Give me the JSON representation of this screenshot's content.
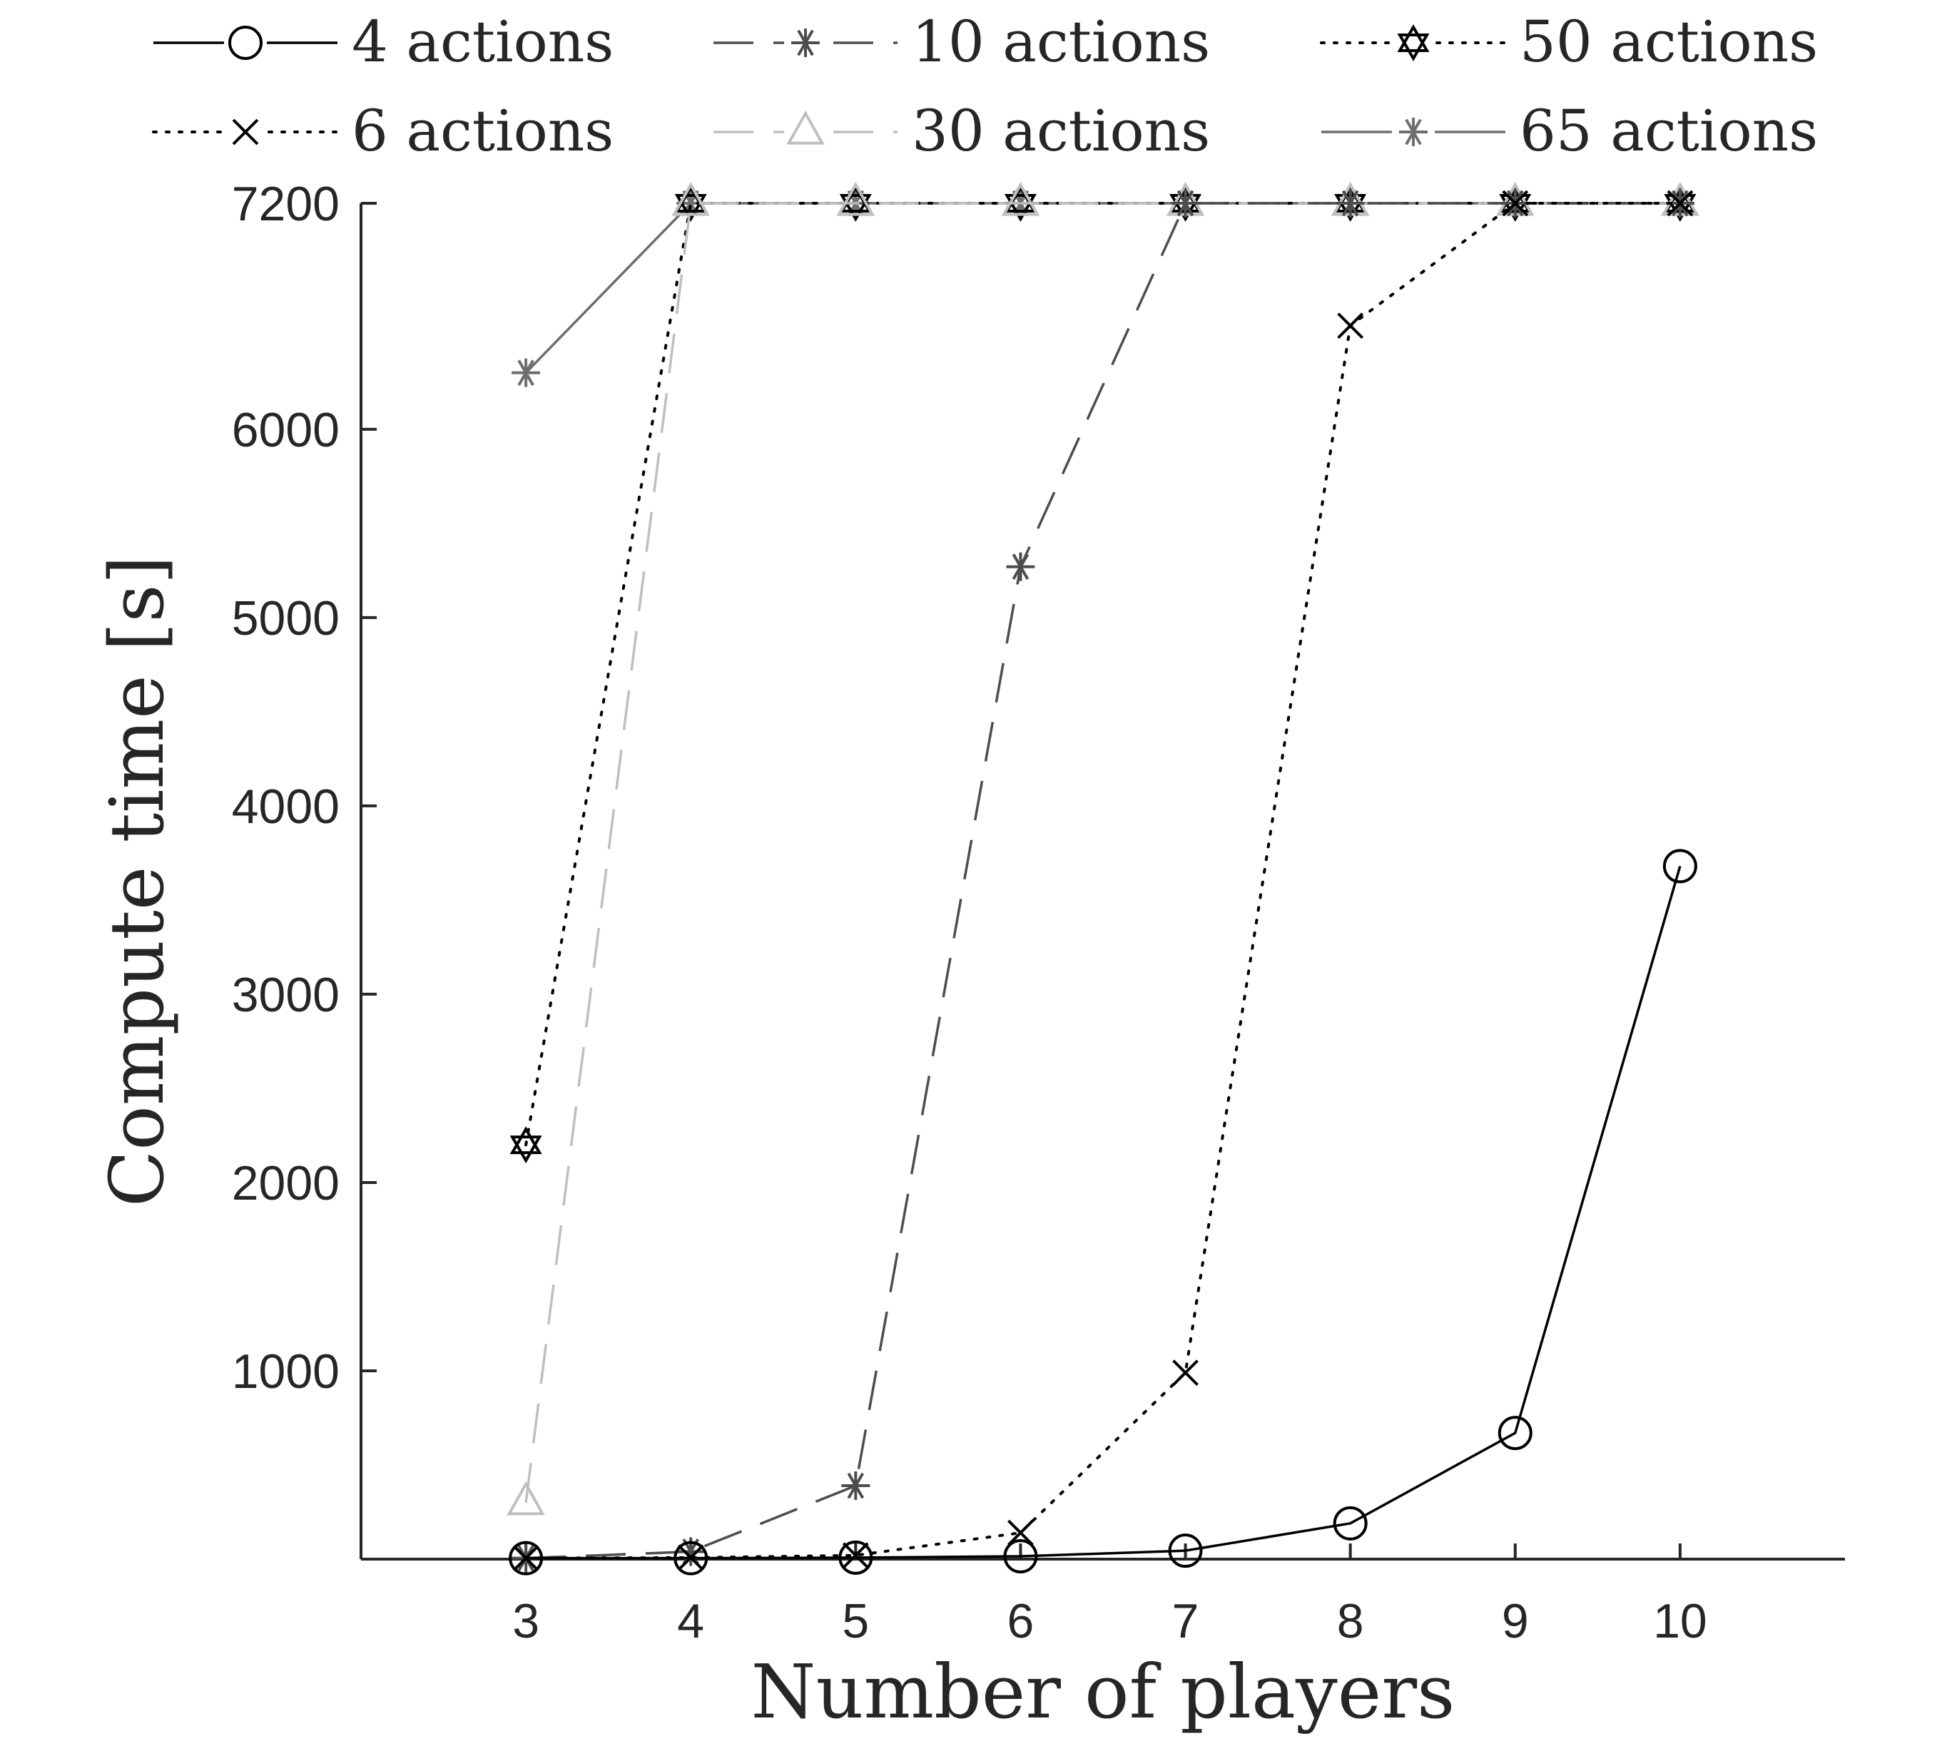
{
  "chart_data": {
    "type": "line",
    "xlabel": "Number of players",
    "ylabel": "Compute time [s]",
    "x": [
      3,
      4,
      5,
      6,
      7,
      8,
      9,
      10
    ],
    "xlim": [
      2,
      11
    ],
    "ylim": [
      0,
      7200
    ],
    "x_ticks": [
      "3",
      "4",
      "5",
      "6",
      "7",
      "8",
      "9",
      "10"
    ],
    "y_ticks": [
      "1000",
      "2000",
      "3000",
      "4000",
      "5000",
      "6000",
      "7200"
    ],
    "grid": false,
    "legend_placement": "top",
    "series": [
      {
        "name": "4 actions",
        "values": [
          5,
          5,
          8,
          15,
          45,
          190,
          670,
          3680
        ],
        "color": "#000000",
        "dash": "solid",
        "marker": "circle"
      },
      {
        "name": "6 actions",
        "values": [
          5,
          8,
          20,
          140,
          990,
          6550,
          7200,
          7200
        ],
        "color": "#000000",
        "dash": "dotted",
        "marker": "x"
      },
      {
        "name": "10 actions",
        "values": [
          5,
          40,
          390,
          5270,
          7200,
          7200,
          7200,
          7200
        ],
        "color": "#4d4d4d",
        "dash": "dashed",
        "marker": "asterisk"
      },
      {
        "name": "30 actions",
        "values": [
          300,
          7200,
          7200,
          7200,
          7200,
          7200,
          7200,
          7200
        ],
        "color": "#bfbfbf",
        "dash": "dashed",
        "marker": "triangle"
      },
      {
        "name": "50 actions",
        "values": [
          2200,
          7200,
          7200,
          7200,
          7200,
          7200,
          7200,
          7200
        ],
        "color": "#000000",
        "dash": "dotted",
        "marker": "hexagram"
      },
      {
        "name": "65 actions",
        "values": [
          6300,
          7200,
          7200,
          7200,
          7200,
          7200,
          7200,
          7200
        ],
        "color": "#6e6e6e",
        "dash": "solid",
        "marker": "asterisk"
      }
    ]
  }
}
